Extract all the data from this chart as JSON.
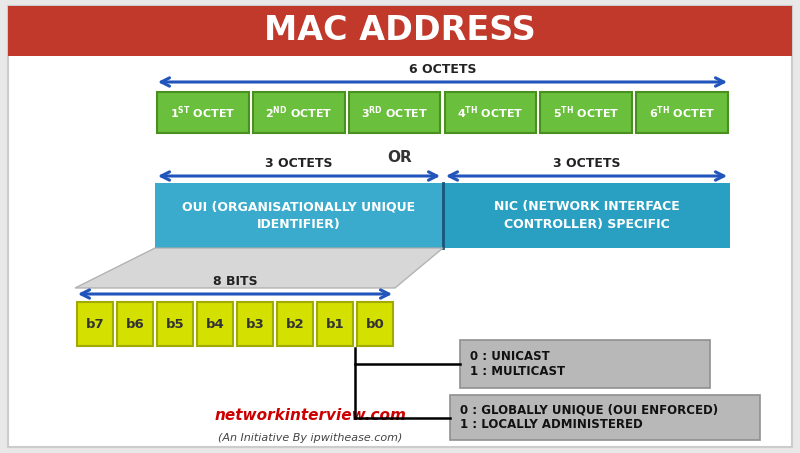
{
  "title": "MAC ADDRESS",
  "title_bg": "#c0392b",
  "title_fg": "#ffffff",
  "bg_color": "#ffffff",
  "outer_bg": "#e8e8e8",
  "green_color": "#6abf3c",
  "green_border": "#4a9020",
  "blue_color_oui": "#3aabcc",
  "blue_color_nic": "#29a0c2",
  "blue_border": "#1a7799",
  "yellow_color": "#d4e000",
  "yellow_border": "#a0aa00",
  "gray_color": "#b8b8b8",
  "gray_border": "#909090",
  "arrow_color": "#2255bb",
  "bit_labels": [
    "b7",
    "b6",
    "b5",
    "b4",
    "b3",
    "b2",
    "b1",
    "b0"
  ],
  "superscripts": [
    "ST",
    "ND",
    "RD",
    "TH",
    "TH",
    "TH"
  ],
  "numbers": [
    "1",
    "2",
    "3",
    "4",
    "5",
    "6"
  ],
  "oui_text": "OUI (ORGANISATIONALLY UNIQUE\nIDENTIFIER)",
  "nic_text": "NIC (NETWORK INTERFACE\nCONTROLLER) SPECIFIC",
  "box1_text": "0 : UNICAST\n1 : MULTICAST",
  "box2_text": "0 : GLOBALLY UNIQUE (OUI ENFORCED)\n1 : LOCALLY ADMINISTERED",
  "watermark": "networkinterview.com",
  "footer": "(An Initiative By ipwithease.com)",
  "six_octets": "6 OCTETS",
  "three_octets_l": "3 OCTETS",
  "three_octets_r": "3 OCTETS",
  "eight_bits": "8 BITS",
  "or_text": "OR"
}
